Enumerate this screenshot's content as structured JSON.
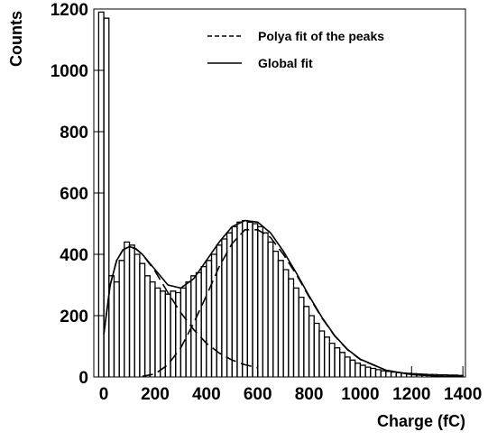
{
  "chart_data": {
    "type": "histogram",
    "xlabel": "Charge (fC)",
    "ylabel": "Counts",
    "xlim": [
      -39,
      1410
    ],
    "ylim": [
      0,
      1200
    ],
    "xticks": [
      0,
      200,
      400,
      600,
      800,
      1000,
      1200,
      1400
    ],
    "yticks": [
      0,
      200,
      400,
      600,
      800,
      1000,
      1200
    ],
    "color": "#000000",
    "legend": "top-right",
    "bins": [
      -20,
      0,
      20,
      40,
      60,
      80,
      100,
      120,
      140,
      160,
      180,
      200,
      220,
      240,
      260,
      280,
      300,
      320,
      340,
      360,
      380,
      400,
      420,
      440,
      460,
      480,
      500,
      520,
      540,
      560,
      580,
      600,
      620,
      640,
      660,
      680,
      700,
      720,
      740,
      760,
      780,
      800,
      820,
      840,
      860,
      880,
      900,
      920,
      940,
      960,
      980,
      1000,
      1020,
      1040,
      1060,
      1080,
      1100,
      1120,
      1140,
      1160,
      1180,
      1200,
      1220,
      1240,
      1260,
      1280,
      1300,
      1320,
      1340,
      1360,
      1380,
      1400
    ],
    "values": [
      1190,
      1170,
      330,
      310,
      380,
      440,
      430,
      400,
      370,
      330,
      310,
      290,
      280,
      270,
      280,
      275,
      290,
      310,
      330,
      340,
      360,
      380,
      400,
      430,
      450,
      470,
      490,
      505,
      510,
      505,
      500,
      490,
      470,
      440,
      410,
      380,
      350,
      320,
      290,
      260,
      230,
      200,
      175,
      150,
      130,
      110,
      95,
      80,
      65,
      55,
      45,
      38,
      32,
      28,
      24,
      20,
      18,
      16,
      14,
      13,
      12,
      11,
      10,
      9,
      8,
      8,
      7,
      7,
      6,
      6,
      5
    ],
    "series": [
      {
        "name": "Polya fit of the peaks",
        "style": "dashed",
        "color": "#000000",
        "x": [
          0,
          25,
          50,
          75,
          100,
          125,
          150,
          200,
          250,
          300,
          350,
          400,
          450,
          500,
          550,
          600,
          null,
          150,
          200,
          250,
          300,
          350,
          400,
          450,
          500,
          550,
          600,
          650,
          700,
          750,
          800,
          850,
          900,
          950,
          1000,
          1100,
          1200,
          1300,
          1400
        ],
        "values": [
          140,
          300,
          380,
          415,
          425,
          418,
          400,
          345,
          275,
          210,
          155,
          110,
          78,
          55,
          40,
          30,
          null,
          2,
          10,
          40,
          95,
          175,
          265,
          360,
          435,
          480,
          480,
          455,
          400,
          335,
          262,
          193,
          134,
          89,
          57,
          22,
          8,
          3,
          1
        ]
      },
      {
        "name": "Global fit",
        "style": "solid",
        "color": "#000000",
        "x": [
          0,
          25,
          50,
          75,
          100,
          125,
          150,
          200,
          250,
          300,
          350,
          400,
          450,
          500,
          550,
          600,
          650,
          700,
          750,
          800,
          850,
          900,
          950,
          1000,
          1100,
          1200,
          1300,
          1400
        ],
        "values": [
          140,
          300,
          380,
          415,
          425,
          418,
          400,
          350,
          300,
          290,
          320,
          380,
          440,
          490,
          510,
          505,
          470,
          410,
          340,
          265,
          195,
          135,
          90,
          58,
          22,
          8,
          3,
          1
        ]
      }
    ]
  }
}
